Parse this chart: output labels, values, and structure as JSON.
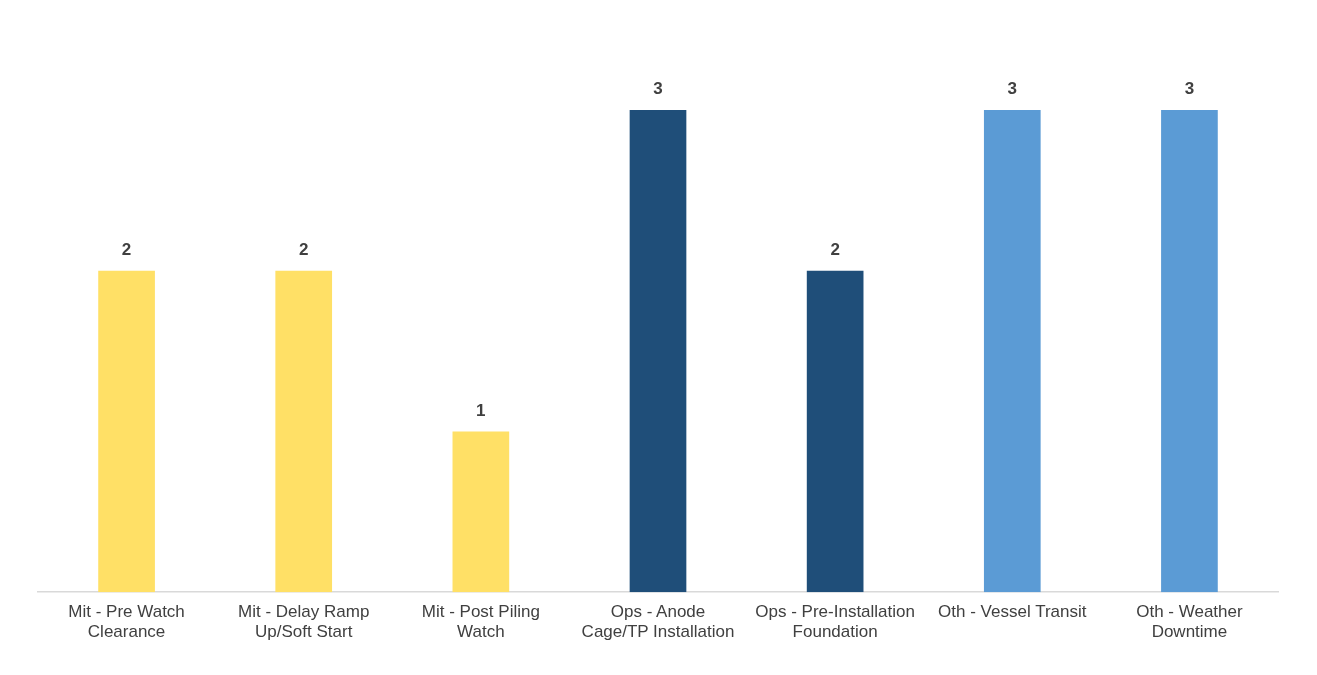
{
  "chart_data": {
    "type": "bar",
    "categories": [
      "Mit - Pre Watch Clearance",
      "Mit - Delay Ramp Up/Soft Start",
      "Mit - Post Piling Watch",
      "Ops - Anode Cage/TP Installation",
      "Ops - Pre-Installation Foundation",
      "Oth - Vessel Transit",
      "Oth - Weather Downtime"
    ],
    "values": [
      2,
      2,
      1,
      3,
      2,
      3,
      3
    ],
    "colors": [
      "#ffe066",
      "#ffe066",
      "#ffe066",
      "#1f4e79",
      "#1f4e79",
      "#5b9bd5",
      "#5b9bd5"
    ],
    "data_labels": true,
    "grid": false,
    "legend": false
  }
}
